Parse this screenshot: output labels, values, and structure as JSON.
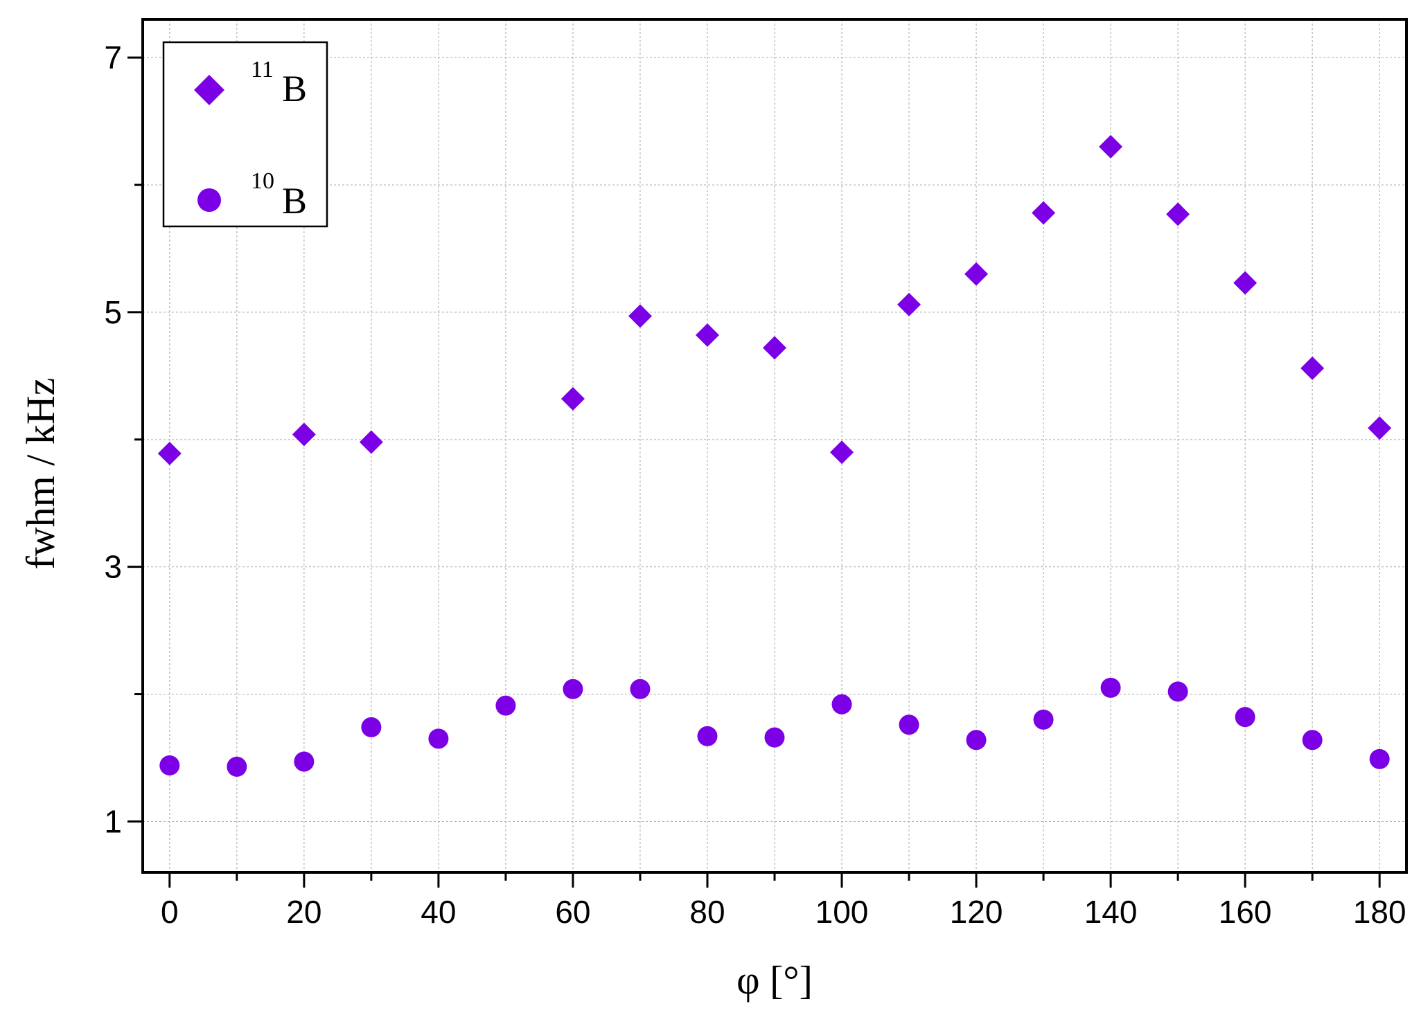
{
  "chart_data": {
    "type": "scatter",
    "xlabel": "φ [°]",
    "ylabel": "fwhm / kHz",
    "xlim": [
      -4,
      184
    ],
    "ylim": [
      0.6,
      7.3
    ],
    "x_ticks": [
      0,
      20,
      40,
      60,
      80,
      100,
      120,
      140,
      160,
      180
    ],
    "x_minor_ticks": [
      10,
      30,
      50,
      70,
      90,
      110,
      130,
      150,
      170
    ],
    "y_ticks": [
      1,
      3,
      5,
      7
    ],
    "y_minor_ticks": [
      2,
      4,
      6
    ],
    "grid": true,
    "legend_position": "top-left",
    "marker_color": "#7b00e6",
    "series": [
      {
        "name": "B",
        "superscript": "11",
        "marker": "diamond",
        "x": [
          0,
          20,
          30,
          60,
          70,
          80,
          90,
          100,
          110,
          120,
          130,
          140,
          150,
          160,
          170,
          180
        ],
        "y": [
          3.89,
          4.04,
          3.98,
          4.32,
          4.97,
          4.82,
          4.72,
          3.9,
          5.06,
          5.3,
          5.78,
          6.3,
          5.77,
          5.23,
          4.56,
          4.09
        ]
      },
      {
        "name": "B",
        "superscript": "10",
        "marker": "circle",
        "x": [
          0,
          10,
          20,
          30,
          40,
          50,
          60,
          70,
          80,
          90,
          100,
          110,
          120,
          130,
          140,
          150,
          160,
          170,
          180
        ],
        "y": [
          1.44,
          1.43,
          1.47,
          1.74,
          1.65,
          1.91,
          2.04,
          2.04,
          1.67,
          1.66,
          1.92,
          1.76,
          1.64,
          1.8,
          2.05,
          2.02,
          1.82,
          1.64,
          1.49
        ]
      }
    ]
  }
}
